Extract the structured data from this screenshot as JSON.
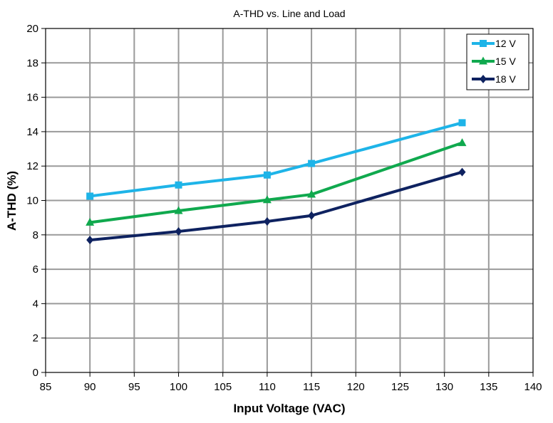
{
  "chart_data": {
    "type": "line",
    "title": "A-THD vs. Line and Load",
    "xlabel": "Input Voltage (VAC)",
    "ylabel": "A-THD (%)",
    "xlim": [
      85,
      140
    ],
    "ylim": [
      0,
      20
    ],
    "xticks": [
      "85",
      "90",
      "95",
      "100",
      "105",
      "110",
      "115",
      "120",
      "125",
      "130",
      "135",
      "140"
    ],
    "yticks": [
      "0",
      "2",
      "4",
      "6",
      "8",
      "10",
      "12",
      "14",
      "16",
      "18",
      "20"
    ],
    "grid": true,
    "legend_position": "top-right",
    "x": [
      90,
      100,
      110,
      115,
      132
    ],
    "series": [
      {
        "name": "12 V",
        "color": "#1EB4E8",
        "marker": "square",
        "values": [
          10.25,
          10.9,
          11.48,
          12.15,
          14.52
        ]
      },
      {
        "name": "15 V",
        "color": "#10A94E",
        "marker": "triangle",
        "values": [
          8.72,
          9.4,
          10.03,
          10.35,
          13.35
        ]
      },
      {
        "name": "18 V",
        "color": "#0E2260",
        "marker": "diamond",
        "values": [
          7.7,
          8.2,
          8.78,
          9.12,
          11.65
        ]
      }
    ]
  }
}
